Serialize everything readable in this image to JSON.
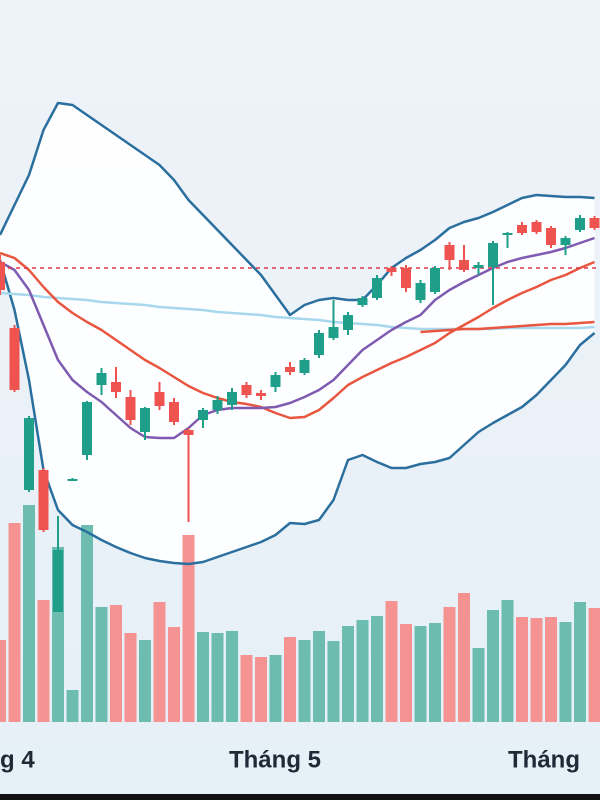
{
  "chart_data": {
    "type": "candlestick",
    "x_labels": [
      "g 4",
      "Tháng 5",
      "Tháng"
    ],
    "ylim": [
      0,
      800
    ],
    "volume_lim": [
      0,
      722
    ],
    "up_color": "#1f9e89",
    "down_color": "#ef5350",
    "volume_up_color": "#6cbcb0",
    "volume_down_color": "#f59393",
    "open": [
      538,
      472,
      310,
      330,
      188,
      319,
      345,
      415,
      418,
      403,
      368,
      408,
      398,
      370,
      380,
      390,
      395,
      415,
      407,
      413,
      433,
      427,
      445,
      462,
      470,
      495,
      502,
      532,
      532,
      500,
      508,
      555,
      540,
      532,
      533,
      565,
      575,
      578,
      572,
      555,
      570,
      582
    ],
    "close": [
      510,
      410,
      382,
      270,
      250,
      321,
      398,
      427,
      408,
      380,
      392,
      394,
      378,
      365,
      390,
      400,
      408,
      405,
      404,
      425,
      428,
      440,
      467,
      473,
      485,
      502,
      522,
      528,
      512,
      517,
      532,
      540,
      530,
      535,
      557,
      567,
      567,
      568,
      555,
      562,
      582,
      572
    ],
    "high": [
      545,
      475,
      384,
      332,
      284,
      322,
      399,
      432,
      433,
      410,
      393,
      418,
      402,
      372,
      392,
      404,
      412,
      418,
      410,
      428,
      438,
      442,
      470,
      500,
      488,
      504,
      525,
      534,
      535,
      520,
      534,
      558,
      555,
      538,
      559,
      568,
      578,
      580,
      574,
      564,
      585,
      584
    ],
    "low": [
      505,
      408,
      308,
      268,
      188,
      319,
      340,
      405,
      402,
      375,
      360,
      390,
      375,
      278,
      372,
      386,
      390,
      402,
      400,
      408,
      425,
      425,
      442,
      460,
      465,
      493,
      500,
      524,
      508,
      497,
      506,
      530,
      528,
      525,
      495,
      552,
      565,
      566,
      552,
      545,
      568,
      570
    ],
    "volume": [
      82,
      199,
      217,
      122,
      175,
      32,
      197,
      115,
      117,
      89,
      82,
      120,
      95,
      187,
      90,
      89,
      91,
      67,
      65,
      67,
      85,
      82,
      91,
      81,
      96,
      102,
      106,
      121,
      98,
      96,
      99,
      115,
      129,
      74,
      112,
      122,
      105,
      104,
      105,
      100,
      120,
      114
    ],
    "bands": {
      "color": "#2a6f9e",
      "upper": [
        565,
        595,
        625,
        670,
        697,
        695,
        685,
        675,
        665,
        655,
        645,
        635,
        620,
        600,
        585,
        570,
        555,
        540,
        525,
        505,
        485,
        495,
        500,
        502,
        500,
        500,
        515,
        532,
        542,
        550,
        560,
        572,
        578,
        582,
        588,
        595,
        602,
        605,
        604,
        603,
        603,
        602
      ],
      "lower": [
        540,
        490,
        420,
        330,
        290,
        275,
        268,
        260,
        253,
        247,
        242,
        239,
        237,
        236,
        238,
        243,
        248,
        253,
        258,
        265,
        277,
        276,
        280,
        300,
        340,
        345,
        338,
        332,
        332,
        336,
        338,
        342,
        355,
        368,
        377,
        385,
        393,
        405,
        420,
        435,
        455,
        467
      ]
    },
    "overlays": [
      {
        "color": "#a7d8ee",
        "values": [
          507,
          506,
          505,
          503,
          502,
          501,
          500,
          498,
          497,
          496,
          495,
          493,
          492,
          491,
          490,
          488,
          487,
          486,
          485,
          483,
          482,
          481,
          480,
          478,
          477,
          476,
          475,
          473,
          472,
          471,
          471,
          471,
          471,
          471,
          471,
          472,
          472,
          472,
          472,
          472,
          472,
          473
        ]
      },
      {
        "color": "#e8563f",
        "values": [
          547,
          542,
          530,
          513,
          498,
          487,
          478,
          470,
          460,
          450,
          440,
          432,
          423,
          414,
          407,
          402,
          398,
          396,
          393,
          387,
          382,
          383,
          390,
          402,
          415,
          423,
          430,
          437,
          443,
          450,
          457,
          467,
          475,
          483,
          492,
          500,
          507,
          513,
          520,
          525,
          532,
          538
        ]
      },
      {
        "color": "#7e5bb0",
        "values": [
          538,
          530,
          510,
          475,
          440,
          420,
          408,
          398,
          385,
          372,
          363,
          362,
          362,
          372,
          385,
          390,
          392,
          392,
          392,
          393,
          397,
          403,
          410,
          420,
          435,
          450,
          460,
          470,
          478,
          485,
          500,
          510,
          518,
          525,
          532,
          538,
          542,
          545,
          548,
          552,
          557,
          562
        ]
      },
      {
        "color": "#e8563f",
        "values": [
          null,
          null,
          null,
          null,
          null,
          null,
          null,
          null,
          null,
          null,
          null,
          null,
          null,
          null,
          null,
          null,
          null,
          null,
          null,
          null,
          null,
          null,
          null,
          null,
          null,
          null,
          null,
          null,
          null,
          468,
          469,
          470,
          471,
          471,
          472,
          473,
          474,
          475,
          476,
          476,
          477,
          478
        ]
      }
    ],
    "reference_line": {
      "value": 532,
      "color": "#e0394a"
    }
  }
}
